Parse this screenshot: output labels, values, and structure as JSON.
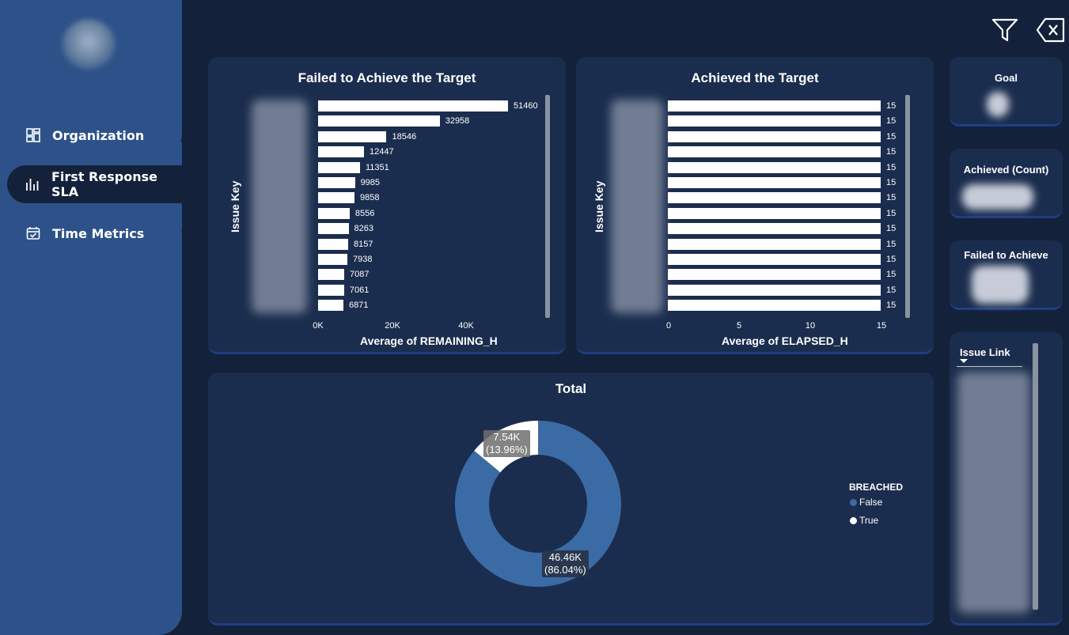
{
  "sidebar": {
    "items": [
      {
        "label": "Organization",
        "icon": "dashboard-icon",
        "active": false
      },
      {
        "label": "First Response SLA",
        "icon": "bar-chart-icon",
        "active": true
      },
      {
        "label": "Time Metrics",
        "icon": "calendar-check-icon",
        "active": false
      }
    ]
  },
  "toolbar": {
    "filter_icon": "filter-icon",
    "clear_icon": "clear-filters-icon"
  },
  "failed_chart": {
    "title": "Failed to Achieve the Target",
    "xlabel": "Average of REMAINING_H",
    "ylabel": "Issue Key",
    "x_ticks": [
      "0K",
      "20K",
      "40K"
    ]
  },
  "achieved_chart": {
    "title": "Achieved the Target",
    "xlabel": "Average of ELAPSED_H",
    "ylabel": "Issue Key",
    "x_ticks": [
      "0",
      "5",
      "10",
      "15"
    ]
  },
  "kpis": {
    "goal": "Goal",
    "achieved_count": "Achieved (Count)",
    "failed": "Failed to Achieve"
  },
  "donut": {
    "title": "Total",
    "legend_title": "BREACHED",
    "legend": [
      {
        "name": "False",
        "color": "#3b6ba5"
      },
      {
        "name": "True",
        "color": "#ffffff"
      }
    ],
    "labels": {
      "false_value": "46.46K",
      "false_pct": "(86.04%)",
      "true_value": "7.54K",
      "true_pct": "(13.96%)"
    }
  },
  "issue_link": {
    "header": "Issue Link"
  },
  "chart_data": [
    {
      "type": "bar",
      "title": "Failed to Achieve the Target",
      "xlabel": "Average of REMAINING_H",
      "ylabel": "Issue Key",
      "xlim": [
        0,
        60000
      ],
      "values": [
        51460,
        32958,
        18546,
        12447,
        11351,
        9985,
        9858,
        8556,
        8263,
        8157,
        7938,
        7087,
        7061,
        6871
      ]
    },
    {
      "type": "bar",
      "title": "Achieved the Target",
      "xlabel": "Average of ELAPSED_H",
      "ylabel": "Issue Key",
      "xlim": [
        0,
        15
      ],
      "values": [
        15,
        15,
        15,
        15,
        15,
        15,
        15,
        15,
        15,
        15,
        15,
        15,
        15,
        15
      ]
    },
    {
      "type": "pie",
      "title": "Total",
      "categories": [
        "False",
        "True"
      ],
      "values": [
        46460,
        7540
      ],
      "percent": [
        86.04,
        13.96
      ]
    }
  ]
}
